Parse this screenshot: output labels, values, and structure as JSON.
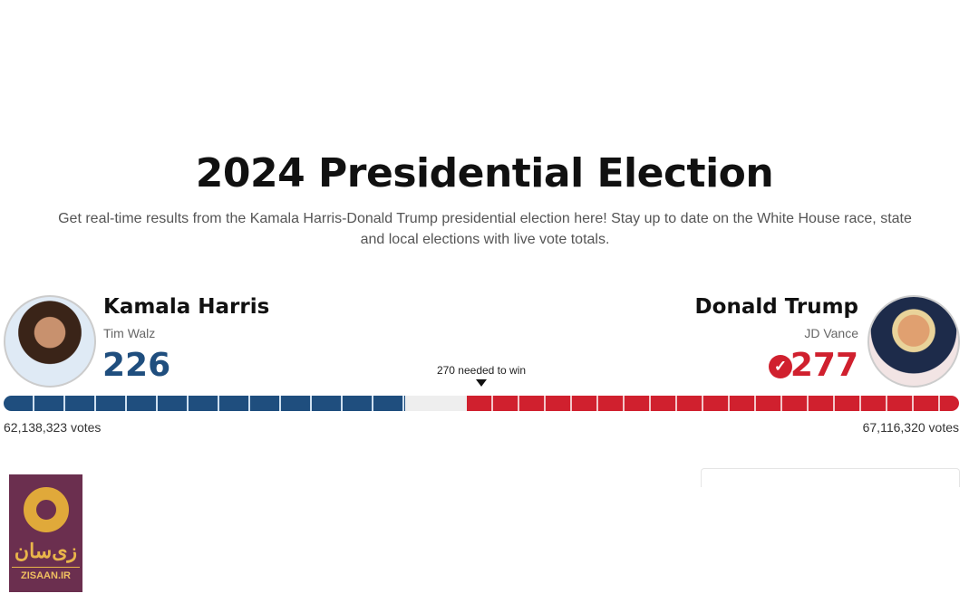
{
  "title": "2024 Presidential Election",
  "subtitle": "Get real-time results from the Kamala Harris-Donald Trump presidential election here! Stay up to date on the White House race, state and local elections with live vote totals.",
  "threshold": {
    "label": "270 needed to win",
    "value": 270
  },
  "total_electoral_votes": 538,
  "candidates": {
    "dem": {
      "name": "Kamala Harris",
      "running_mate": "Tim Walz",
      "electoral_votes": 226,
      "popular_votes": "62,138,323 votes",
      "color": "#1f4e7e"
    },
    "rep": {
      "name": "Donald Trump",
      "running_mate": "JD Vance",
      "electoral_votes": 277,
      "popular_votes": "67,116,320 votes",
      "color": "#d0202e",
      "winner": true,
      "winner_icon": "check-circle-icon"
    }
  },
  "watermark": {
    "text_fa": "زی‌سان",
    "text_en": "ZISAAN.IR"
  }
}
